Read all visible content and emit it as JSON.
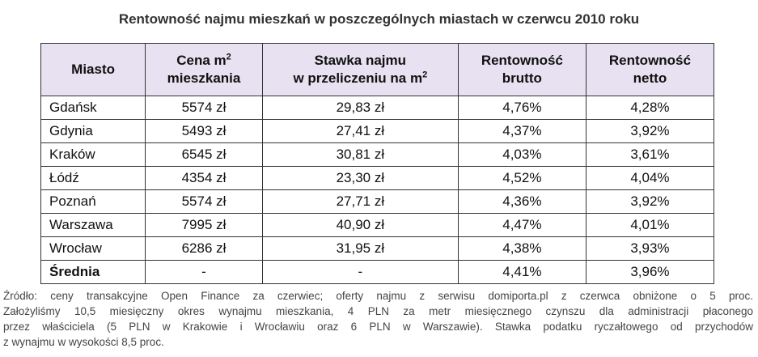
{
  "title": "Rentowność najmu mieszkań w poszczególnych miastach w czerwcu 2010 roku",
  "table": {
    "header": [
      [
        [
          {
            "text": "Miasto"
          }
        ]
      ],
      [
        [
          {
            "text": "Cena m"
          },
          {
            "sup": "2"
          }
        ],
        [
          {
            "text": "mieszkania"
          }
        ]
      ],
      [
        [
          {
            "text": "Stawka najmu"
          }
        ],
        [
          {
            "text": "w przeliczeniu na m"
          },
          {
            "sup": "2"
          }
        ]
      ],
      [
        [
          {
            "text": "Rentowność"
          }
        ],
        [
          {
            "text": "brutto"
          }
        ]
      ],
      [
        [
          {
            "text": "Rentowność"
          }
        ],
        [
          {
            "text": "netto"
          }
        ]
      ]
    ],
    "rows": [
      [
        "Gdańsk",
        "5574 zł",
        "29,83 zł",
        "4,76%",
        "4,28%"
      ],
      [
        "Gdynia",
        "5493 zł",
        "27,41 zł",
        "4,37%",
        "3,92%"
      ],
      [
        "Kraków",
        "6545 zł",
        "30,81 zł",
        "4,03%",
        "3,61%"
      ],
      [
        "Łódź",
        "4354 zł",
        "23,30 zł",
        "4,52%",
        "4,04%"
      ],
      [
        "Poznań",
        "5574 zł",
        "27,71 zł",
        "4,36%",
        "3,92%"
      ],
      [
        "Warszawa",
        "7995 zł",
        "40,90 zł",
        "4,47%",
        "4,01%"
      ],
      [
        "Wrocław",
        "6286 zł",
        "31,95 zł",
        "4,38%",
        "3,93%"
      ],
      [
        "Średnia",
        "-",
        "-",
        "4,41%",
        "3,96%"
      ]
    ]
  },
  "footnote": [
    "Źródło: ceny transakcyjne Open Finance za czerwiec; oferty najmu z serwisu domiporta.pl z czerwca obniżone o 5 proc.",
    "Założyliśmy 10,5 miesięczny okres wynajmu mieszkania, 4 PLN za metr miesięcznego czynszu dla administracji płaconego",
    "przez właściciela (5 PLN w Krakowie i Wrocławiu oraz 6 PLN w Warszawie). Stawka podatku ryczałtowego od przychodów",
    "z wynajmu w wysokości 8,5 proc."
  ]
}
